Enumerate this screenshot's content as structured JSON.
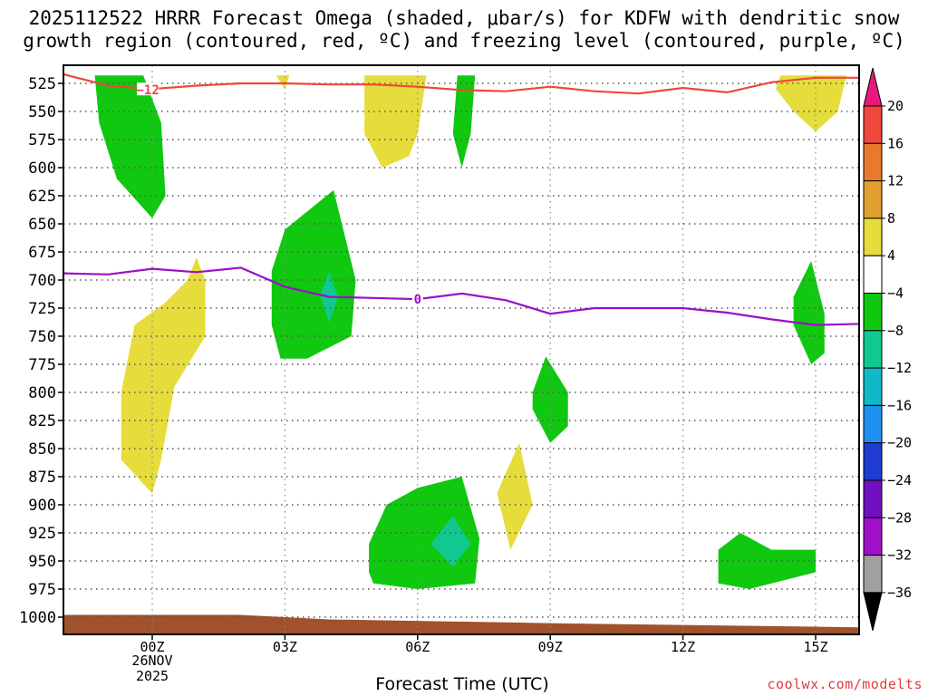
{
  "title_line1": "2025112522 HRRR Forecast Omega (shaded, μbar/s) for KDFW with dendritic snow",
  "title_line2": "growth region (contoured, red, ºC) and freezing level (contoured, purple, ºC)",
  "xlabel": "Forecast Time (UTC)",
  "credit": "coolwx.com/modelts",
  "date_label": {
    "line1": "26NOV",
    "line2": "2025"
  },
  "colors": {
    "frame": "#000000",
    "grid": "#555555",
    "dgz": "#f0463c",
    "freezing": "#9a10c8",
    "terrain": "#a0522d"
  },
  "chart_data": {
    "type": "heatmap",
    "title": "2025112522 HRRR Forecast Omega (shaded, μbar/s) for KDFW with dendritic snow growth region (contoured, red, ºC) and freezing level (contoured, purple, ºC)",
    "xlabel": "Forecast Time (UTC)",
    "ylabel": "Pressure (hPa)",
    "x_ticks": [
      {
        "hour": 0,
        "label": "00Z"
      },
      {
        "hour": 3,
        "label": "03Z"
      },
      {
        "hour": 6,
        "label": "06Z"
      },
      {
        "hour": 9,
        "label": "09Z"
      },
      {
        "hour": 12,
        "label": "12Z"
      },
      {
        "hour": 15,
        "label": "15Z"
      }
    ],
    "xlim": [
      -2,
      16
    ],
    "y_ticks": [
      525,
      550,
      575,
      600,
      625,
      650,
      675,
      700,
      725,
      750,
      775,
      800,
      825,
      850,
      875,
      900,
      925,
      950,
      975,
      1000
    ],
    "ylim": [
      510,
      1015
    ],
    "colorbar": {
      "labels": [
        "20",
        "16",
        "12",
        "8",
        "4",
        "−4",
        "−8",
        "−12",
        "−16",
        "−20",
        "−24",
        "−28",
        "−32",
        "−36"
      ],
      "colors": [
        "#e8187c",
        "#f0463c",
        "#e87a2c",
        "#e0a030",
        "#e6dc3c",
        "#ffffff",
        "#10c810",
        "#10c890",
        "#10b8c8",
        "#1e90f0",
        "#1e3cd0",
        "#7010c0",
        "#a010c8",
        "#a0a0a0",
        "#000000"
      ]
    },
    "dgz_contour": {
      "label": "−12",
      "points": [
        [
          -2,
          517
        ],
        [
          -1.5,
          522
        ],
        [
          -1,
          527
        ],
        [
          0,
          530
        ],
        [
          1,
          527
        ],
        [
          2,
          525
        ],
        [
          3,
          525
        ],
        [
          4,
          526
        ],
        [
          5,
          526
        ],
        [
          6,
          528
        ],
        [
          7,
          531
        ],
        [
          8,
          532
        ],
        [
          9,
          528
        ],
        [
          10,
          532
        ],
        [
          11,
          534
        ],
        [
          12,
          529
        ],
        [
          13,
          533
        ],
        [
          14,
          524
        ],
        [
          15,
          520
        ],
        [
          16,
          520
        ]
      ]
    },
    "freezing_contour": {
      "label": "0",
      "points": [
        [
          -2,
          694
        ],
        [
          -1,
          695
        ],
        [
          0,
          690
        ],
        [
          1,
          693
        ],
        [
          2,
          689
        ],
        [
          3,
          706
        ],
        [
          4,
          715
        ],
        [
          5,
          716
        ],
        [
          6,
          717
        ],
        [
          7,
          712
        ],
        [
          8,
          718
        ],
        [
          9,
          730
        ],
        [
          10,
          725
        ],
        [
          11,
          725
        ],
        [
          12,
          725
        ],
        [
          13,
          729
        ],
        [
          14,
          735
        ],
        [
          15,
          740
        ],
        [
          16,
          739
        ]
      ]
    },
    "omega_regions": [
      {
        "name": "green-upper-left",
        "value": "-4 to -8",
        "points": [
          [
            -1.3,
            518
          ],
          [
            -0.2,
            518
          ],
          [
            0.2,
            560
          ],
          [
            0.3,
            625
          ],
          [
            0.0,
            645
          ],
          [
            -0.8,
            610
          ],
          [
            -1.2,
            560
          ]
        ]
      },
      {
        "name": "yellow-upper-03z",
        "value": "4 to 8",
        "points": [
          [
            2.8,
            518
          ],
          [
            3.1,
            518
          ],
          [
            3.0,
            530
          ]
        ]
      },
      {
        "name": "yellow-upper-05z",
        "value": "4 to 8",
        "points": [
          [
            4.8,
            518
          ],
          [
            6.2,
            518
          ],
          [
            6.0,
            570
          ],
          [
            5.8,
            590
          ],
          [
            5.2,
            600
          ],
          [
            4.8,
            570
          ]
        ]
      },
      {
        "name": "green-upper-07z",
        "value": "-4 to -8",
        "points": [
          [
            6.9,
            518
          ],
          [
            7.3,
            518
          ],
          [
            7.2,
            570
          ],
          [
            7.0,
            600
          ],
          [
            6.8,
            570
          ]
        ]
      },
      {
        "name": "yellow-upper-15z",
        "value": "4 to 8",
        "points": [
          [
            14.2,
            518
          ],
          [
            15.7,
            518
          ],
          [
            15.5,
            550
          ],
          [
            15.0,
            568
          ],
          [
            14.5,
            550
          ],
          [
            14.1,
            530
          ]
        ]
      },
      {
        "name": "yellow-lower-left",
        "value": "4 to 8",
        "points": [
          [
            1.0,
            680
          ],
          [
            1.2,
            700
          ],
          [
            1.2,
            750
          ],
          [
            0.5,
            795
          ],
          [
            0.2,
            860
          ],
          [
            0.0,
            890
          ],
          [
            -0.7,
            860
          ],
          [
            -0.7,
            800
          ],
          [
            -0.4,
            740
          ],
          [
            0.3,
            720
          ],
          [
            0.8,
            700
          ]
        ]
      },
      {
        "name": "green-mid-03z",
        "value": "-4 to -8",
        "points": [
          [
            2.7,
            692
          ],
          [
            3.0,
            655
          ],
          [
            4.1,
            620
          ],
          [
            4.6,
            700
          ],
          [
            4.5,
            750
          ],
          [
            3.5,
            770
          ],
          [
            2.9,
            770
          ],
          [
            2.7,
            740
          ]
        ]
      },
      {
        "name": "teal-mid-03z",
        "value": "-8 to -12",
        "points": [
          [
            3.8,
            713
          ],
          [
            4.0,
            693
          ],
          [
            4.2,
            715
          ],
          [
            4.0,
            738
          ]
        ]
      },
      {
        "name": "green-mid-09z",
        "value": "-4 to -8",
        "points": [
          [
            8.6,
            800
          ],
          [
            8.9,
            768
          ],
          [
            9.4,
            800
          ],
          [
            9.4,
            830
          ],
          [
            9.0,
            845
          ],
          [
            8.6,
            815
          ]
        ]
      },
      {
        "name": "yellow-lower-08z",
        "value": "4 to 8",
        "points": [
          [
            7.9,
            880
          ],
          [
            8.3,
            845
          ],
          [
            8.6,
            900
          ],
          [
            8.1,
            940
          ],
          [
            7.8,
            890
          ]
        ]
      },
      {
        "name": "green-lower-06z",
        "value": "-4 to -8",
        "points": [
          [
            4.9,
            935
          ],
          [
            5.3,
            900
          ],
          [
            6.0,
            885
          ],
          [
            7.0,
            875
          ],
          [
            7.4,
            930
          ],
          [
            7.3,
            970
          ],
          [
            6.0,
            975
          ],
          [
            5.0,
            970
          ],
          [
            4.9,
            960
          ]
        ]
      },
      {
        "name": "teal-lower-06z",
        "value": "-8 to -12",
        "points": [
          [
            6.3,
            935
          ],
          [
            6.8,
            910
          ],
          [
            7.2,
            935
          ],
          [
            6.8,
            955
          ]
        ]
      },
      {
        "name": "green-mid-15z",
        "value": "-4 to -8",
        "points": [
          [
            14.5,
            715
          ],
          [
            14.9,
            683
          ],
          [
            15.2,
            730
          ],
          [
            15.2,
            765
          ],
          [
            14.9,
            775
          ],
          [
            14.5,
            740
          ]
        ]
      },
      {
        "name": "green-lower-13z",
        "value": "-4 to -8",
        "points": [
          [
            12.8,
            940
          ],
          [
            13.3,
            925
          ],
          [
            14.0,
            940
          ],
          [
            15.0,
            940
          ],
          [
            15.0,
            960
          ],
          [
            13.5,
            975
          ],
          [
            12.8,
            970
          ]
        ]
      }
    ],
    "terrain_surface": [
      [
        -2,
        998
      ],
      [
        2,
        998
      ],
      [
        4,
        1002
      ],
      [
        10,
        1006
      ],
      [
        16,
        1009
      ]
    ]
  }
}
